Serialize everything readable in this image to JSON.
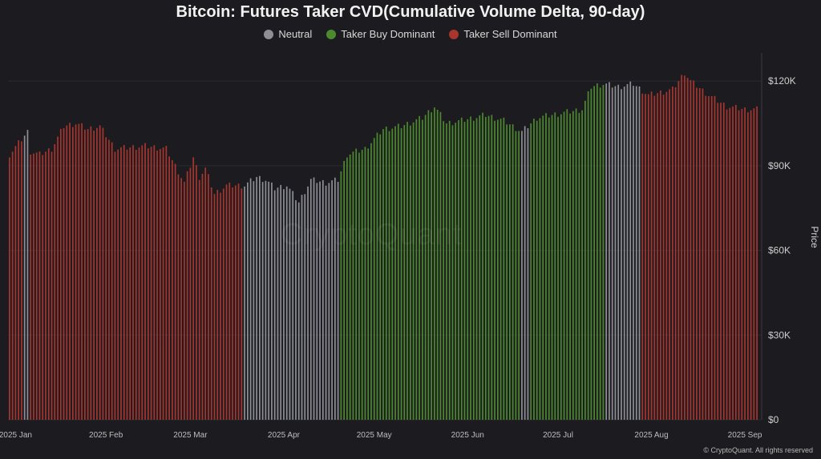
{
  "chart_data": {
    "type": "bar",
    "title": "Bitcoin: Futures Taker CVD(Cumulative Volume Delta, 90-day)",
    "ylabel": "Price",
    "ylim": [
      0,
      130000
    ],
    "yticks": [
      {
        "value": 0,
        "label": "$0"
      },
      {
        "value": 30000,
        "label": "$30K"
      },
      {
        "value": 60000,
        "label": "$60K"
      },
      {
        "value": 90000,
        "label": "$90K"
      },
      {
        "value": 120000,
        "label": "$120K"
      }
    ],
    "xticks": [
      {
        "index": 2,
        "label": "2025 Jan"
      },
      {
        "index": 32,
        "label": "2025 Feb"
      },
      {
        "index": 60,
        "label": "2025 Mar"
      },
      {
        "index": 91,
        "label": "2025 Apr"
      },
      {
        "index": 121,
        "label": "2025 May"
      },
      {
        "index": 152,
        "label": "2025 Jun"
      },
      {
        "index": 182,
        "label": "2025 Jul"
      },
      {
        "index": 213,
        "label": "2025 Aug"
      },
      {
        "index": 244,
        "label": "2025 Sep"
      }
    ],
    "legend": [
      {
        "name": "Neutral",
        "color": "#8e8e96"
      },
      {
        "name": "Taker Buy Dominant",
        "color": "#4c8a2e"
      },
      {
        "name": "Taker Sell Dominant",
        "color": "#a8352e"
      }
    ],
    "state_colors": {
      "N": "#8e8e96",
      "B": "#4c8a2e",
      "S": "#a8352e"
    },
    "segments": [
      {
        "state": "S",
        "from": 0,
        "to": 4
      },
      {
        "state": "N",
        "from": 5,
        "to": 6
      },
      {
        "state": "S",
        "from": 7,
        "to": 77
      },
      {
        "state": "N",
        "from": 78,
        "to": 109
      },
      {
        "state": "B",
        "from": 110,
        "to": 169
      },
      {
        "state": "N",
        "from": 170,
        "to": 172
      },
      {
        "state": "B",
        "from": 173,
        "to": 197
      },
      {
        "state": "N",
        "from": 198,
        "to": 209
      },
      {
        "state": "S",
        "from": 210,
        "to": 248
      }
    ],
    "price_anchors": [
      [
        0,
        94000
      ],
      [
        3,
        98000
      ],
      [
        6,
        102000
      ],
      [
        7,
        95000
      ],
      [
        10,
        94000
      ],
      [
        14,
        96000
      ],
      [
        18,
        104000
      ],
      [
        22,
        105000
      ],
      [
        26,
        103000
      ],
      [
        30,
        104000
      ],
      [
        35,
        96000
      ],
      [
        45,
        97000
      ],
      [
        52,
        96000
      ],
      [
        56,
        88000
      ],
      [
        58,
        84000
      ],
      [
        61,
        93000
      ],
      [
        63,
        86000
      ],
      [
        65,
        89000
      ],
      [
        68,
        80000
      ],
      [
        72,
        83000
      ],
      [
        78,
        83000
      ],
      [
        82,
        86000
      ],
      [
        85,
        85000
      ],
      [
        88,
        82000
      ],
      [
        92,
        83000
      ],
      [
        96,
        77000
      ],
      [
        100,
        85000
      ],
      [
        105,
        84000
      ],
      [
        109,
        85000
      ],
      [
        112,
        94000
      ],
      [
        118,
        96000
      ],
      [
        124,
        103000
      ],
      [
        130,
        104000
      ],
      [
        137,
        107000
      ],
      [
        141,
        111000
      ],
      [
        145,
        105000
      ],
      [
        150,
        106000
      ],
      [
        158,
        108000
      ],
      [
        164,
        106000
      ],
      [
        170,
        102000
      ],
      [
        175,
        107000
      ],
      [
        180,
        108000
      ],
      [
        185,
        109000
      ],
      [
        190,
        110000
      ],
      [
        193,
        118000
      ],
      [
        197,
        119000
      ],
      [
        202,
        118000
      ],
      [
        207,
        119000
      ],
      [
        212,
        115000
      ],
      [
        220,
        117000
      ],
      [
        224,
        123000
      ],
      [
        226,
        120000
      ],
      [
        232,
        115000
      ],
      [
        238,
        111000
      ],
      [
        244,
        110000
      ],
      [
        248,
        110000
      ]
    ],
    "bar_count": 249
  },
  "watermark": "CryptoQuant",
  "copyright": "© CryptoQuant. All rights reserved"
}
